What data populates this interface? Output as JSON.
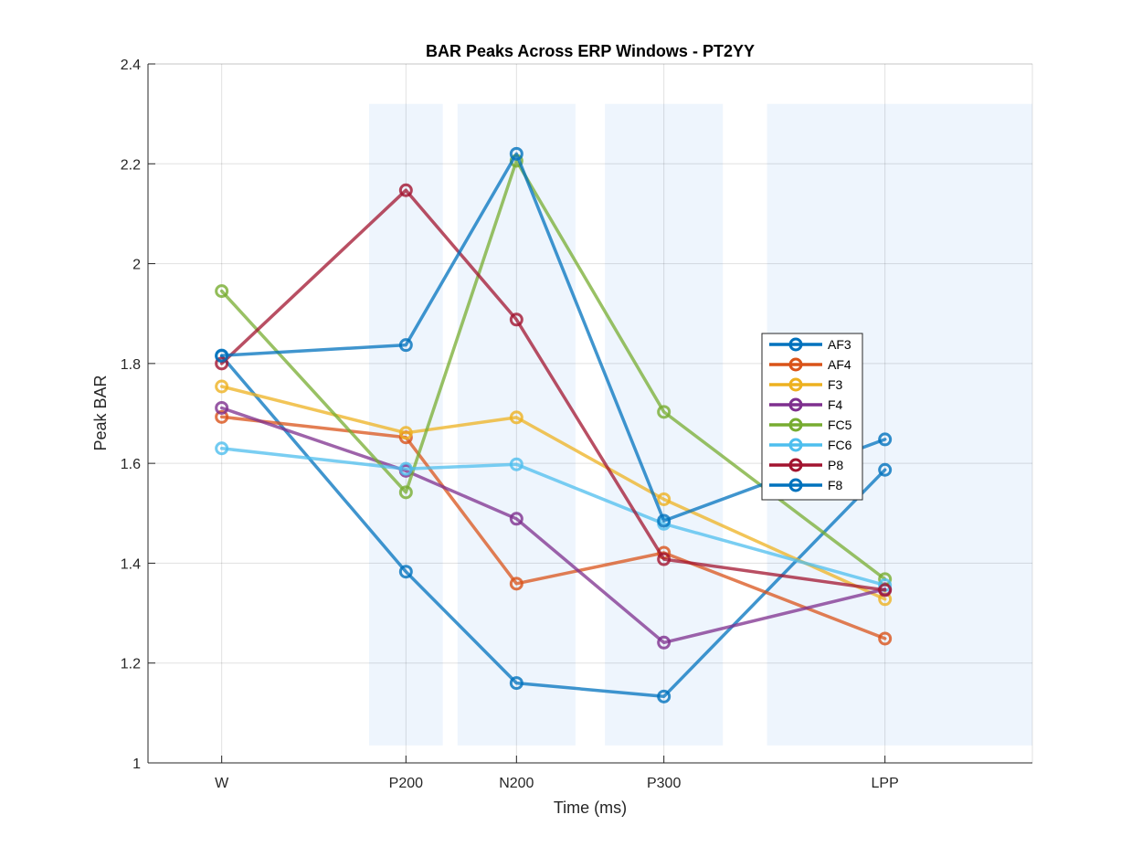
{
  "chart_data": {
    "type": "line",
    "title": "BAR Peaks Across ERP Windows - PT2YY",
    "xlabel": "Time (ms)",
    "ylabel": "Peak BAR",
    "x": [
      0,
      250,
      400,
      600,
      900
    ],
    "xticks": [
      {
        "value": 0,
        "label": "W"
      },
      {
        "value": 250,
        "label": "P200"
      },
      {
        "value": 400,
        "label": "N200"
      },
      {
        "value": 600,
        "label": "P300"
      },
      {
        "value": 900,
        "label": "LPP"
      }
    ],
    "xlim": [
      -100,
      1100
    ],
    "ylim": [
      1,
      2.4
    ],
    "yticks": [
      "1",
      "1.2",
      "1.4",
      "1.6",
      "1.8",
      "2",
      "2.2",
      "2.4"
    ],
    "grid": true,
    "legend_position": "right",
    "shaded_windows": [
      {
        "label": "P200",
        "x_range": [
          200,
          300
        ],
        "y_range": [
          1.035,
          2.32
        ]
      },
      {
        "label": "N200",
        "x_range": [
          320,
          480
        ],
        "y_range": [
          1.035,
          2.32
        ]
      },
      {
        "label": "P300",
        "x_range": [
          520,
          680
        ],
        "y_range": [
          1.035,
          2.32
        ]
      },
      {
        "label": "LPP",
        "x_range": [
          740,
          1100
        ],
        "y_range": [
          1.035,
          2.32
        ]
      }
    ],
    "series": [
      {
        "name": "AF3",
        "color": "#0072BD",
        "values": [
          1.815,
          1.383,
          1.16,
          1.133,
          1.587
        ]
      },
      {
        "name": "AF4",
        "color": "#D95319",
        "values": [
          1.693,
          1.652,
          1.359,
          1.421,
          1.249
        ]
      },
      {
        "name": "F3",
        "color": "#EDB120",
        "values": [
          1.754,
          1.661,
          1.692,
          1.528,
          1.328
        ]
      },
      {
        "name": "F4",
        "color": "#7E2F8E",
        "values": [
          1.711,
          1.585,
          1.489,
          1.241,
          1.348
        ]
      },
      {
        "name": "FC5",
        "color": "#77AC30",
        "values": [
          1.945,
          1.542,
          2.206,
          1.703,
          1.368
        ]
      },
      {
        "name": "FC6",
        "color": "#4DBEEE",
        "values": [
          1.63,
          1.589,
          1.598,
          1.479,
          1.356
        ]
      },
      {
        "name": "P8",
        "color": "#A2142F",
        "values": [
          1.8,
          2.147,
          1.888,
          1.408,
          1.346
        ]
      },
      {
        "name": "F8",
        "color": "#0072BD",
        "values": [
          1.816,
          1.837,
          2.22,
          1.485,
          1.648
        ]
      }
    ]
  }
}
